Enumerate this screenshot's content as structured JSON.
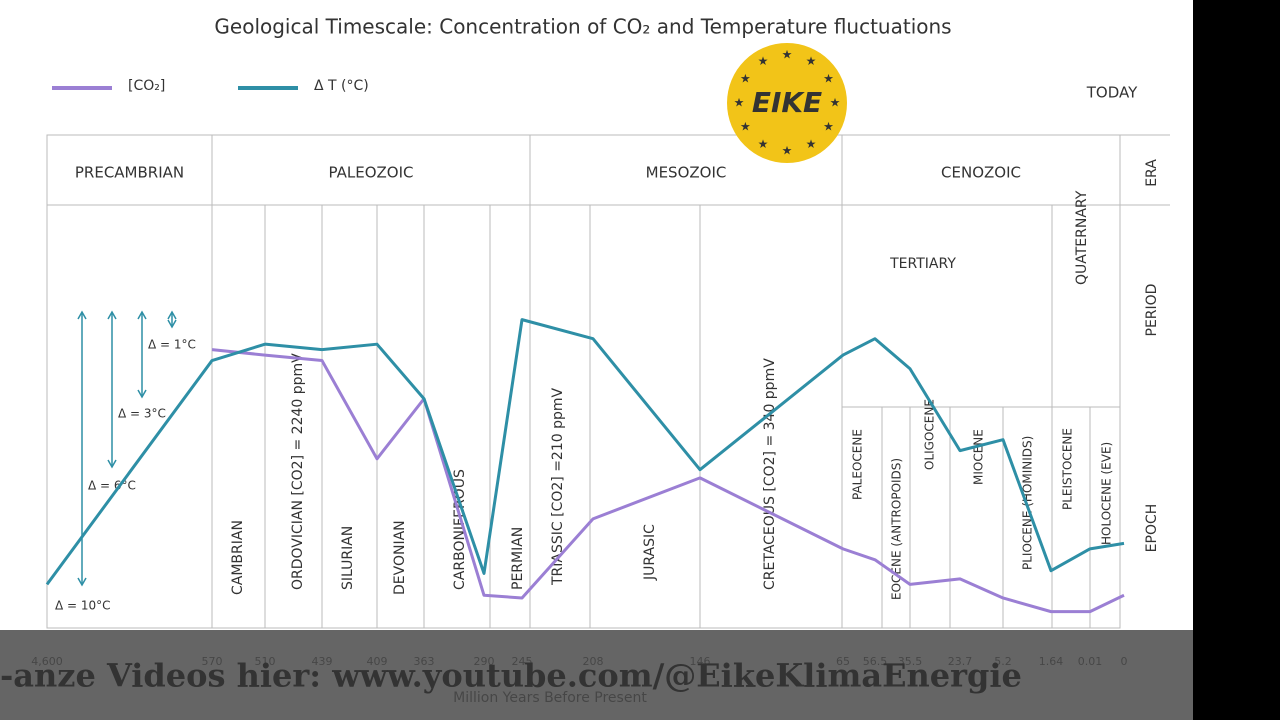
{
  "chart_data": {
    "type": "line",
    "title": "Geological Timescale: Concentration of CO₂ and Temperature fluctuations",
    "xlabel": "Million Years Before Present",
    "today": "TODAY",
    "categories": [
      "4,600",
      "570",
      "510",
      "439",
      "409",
      "363",
      "290",
      "245",
      "208",
      "146",
      "65",
      "56.5",
      "35.5",
      "23.7",
      "5.2",
      "1.64",
      "0.01",
      "0"
    ],
    "series": [
      {
        "name": "[CO₂]",
        "color": "#9b7fd4",
        "values": [
          null,
          8.6,
          8.4,
          8.2,
          4.6,
          6.8,
          -0.4,
          -0.5,
          2.4,
          3.9,
          1.3,
          0.9,
          0,
          0.2,
          -0.5,
          -1.0,
          -1.0,
          -0.4
        ]
      },
      {
        "name": "Δ T (°C)",
        "color": "#2e8fa6",
        "values": [
          0,
          8.2,
          8.8,
          8.6,
          8.8,
          6.8,
          0.4,
          9.7,
          9.0,
          4.2,
          8.4,
          9.0,
          7.9,
          4.9,
          5.3,
          0.5,
          1.3,
          1.5
        ]
      }
    ],
    "ylim": [
      -1.6,
      13.9
    ],
    "row_labels": [
      "ERA",
      "PERIOD",
      "EPOCH"
    ],
    "eras": [
      "PRECAMBRIAN",
      "PALEOZOIC",
      "MESOZOIC",
      "CENOZOIC"
    ],
    "periods": [
      "CAMBRIAN",
      "ORDOVICIAN [CO2] = 2240 ppmV",
      "SILURIAN",
      "DEVONIAN",
      "CARBONIFEROUS",
      "PERMIAN",
      "TRIASSIC [CO2] =210 ppmV",
      "JURASIC",
      "CRETACEOUS [CO2] = 340 ppmV",
      "TERTIARY",
      "QUATERNARY"
    ],
    "epochs": [
      "PALEOCENE",
      "EOCENE (ANTROPOIDS)",
      "OLIGOCENE",
      "MIOCENE",
      "PLIOCENE (HOMINIDS)",
      "PLEISTOCENE",
      "HOLOCENE (EVE)"
    ],
    "annotations": [
      "Δ = 1°C",
      "Δ = 3°C",
      "Δ = 6°C",
      "Δ = 10°C"
    ]
  },
  "overlay": {
    "logo": "EIKE",
    "banner": "-anze Videos hier: www.youtube.com/@EikeKlimaEnergie"
  }
}
